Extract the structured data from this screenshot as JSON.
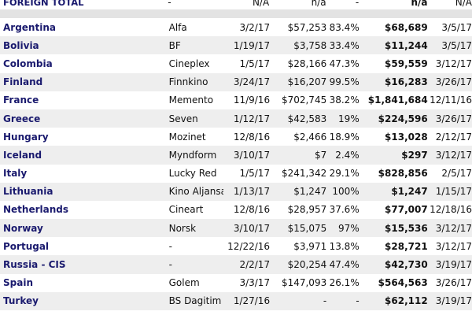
{
  "foreign_total": {
    "label": "FOREIGN TOTAL",
    "distributor": "-",
    "release_date": "N/A",
    "opening_gross": "n/a",
    "percent": "-",
    "total_gross": "n/a",
    "as_of": "N/A"
  },
  "rows": [
    {
      "country": "Argentina",
      "distributor": "Alfa",
      "release_date": "3/2/17",
      "opening_gross": "$57,253",
      "percent": "83.4%",
      "total_gross": "$68,689",
      "as_of": "3/5/17"
    },
    {
      "country": "Bolivia",
      "distributor": "BF",
      "release_date": "1/19/17",
      "opening_gross": "$3,758",
      "percent": "33.4%",
      "total_gross": "$11,244",
      "as_of": "3/5/17"
    },
    {
      "country": "Colombia",
      "distributor": "Cineplex",
      "release_date": "1/5/17",
      "opening_gross": "$28,166",
      "percent": "47.3%",
      "total_gross": "$59,559",
      "as_of": "3/12/17"
    },
    {
      "country": "Finland",
      "distributor": "Finnkino",
      "release_date": "3/24/17",
      "opening_gross": "$16,207",
      "percent": "99.5%",
      "total_gross": "$16,283",
      "as_of": "3/26/17"
    },
    {
      "country": "France",
      "distributor": "Memento",
      "release_date": "11/9/16",
      "opening_gross": "$702,745",
      "percent": "38.2%",
      "total_gross": "$1,841,684",
      "as_of": "12/11/16"
    },
    {
      "country": "Greece",
      "distributor": "Seven",
      "release_date": "1/12/17",
      "opening_gross": "$42,583",
      "percent": "19%",
      "total_gross": "$224,596",
      "as_of": "3/26/17"
    },
    {
      "country": "Hungary",
      "distributor": "Mozinet",
      "release_date": "12/8/16",
      "opening_gross": "$2,466",
      "percent": "18.9%",
      "total_gross": "$13,028",
      "as_of": "2/12/17"
    },
    {
      "country": "Iceland",
      "distributor": "Myndform",
      "release_date": "3/10/17",
      "opening_gross": "$7",
      "percent": "2.4%",
      "total_gross": "$297",
      "as_of": "3/12/17"
    },
    {
      "country": "Italy",
      "distributor": "Lucky Red",
      "release_date": "1/5/17",
      "opening_gross": "$241,342",
      "percent": "29.1%",
      "total_gross": "$828,856",
      "as_of": "2/5/17"
    },
    {
      "country": "Lithuania",
      "distributor": "Kino Aljansas",
      "release_date": "1/13/17",
      "opening_gross": "$1,247",
      "percent": "100%",
      "total_gross": "$1,247",
      "as_of": "1/15/17"
    },
    {
      "country": "Netherlands",
      "distributor": "Cineart",
      "release_date": "12/8/16",
      "opening_gross": "$28,957",
      "percent": "37.6%",
      "total_gross": "$77,007",
      "as_of": "12/18/16"
    },
    {
      "country": "Norway",
      "distributor": "Norsk",
      "release_date": "3/10/17",
      "opening_gross": "$15,075",
      "percent": "97%",
      "total_gross": "$15,536",
      "as_of": "3/12/17"
    },
    {
      "country": "Portugal",
      "distributor": "-",
      "release_date": "12/22/16",
      "opening_gross": "$3,971",
      "percent": "13.8%",
      "total_gross": "$28,721",
      "as_of": "3/12/17"
    },
    {
      "country": "Russia - CIS",
      "distributor": "-",
      "release_date": "2/2/17",
      "opening_gross": "$20,254",
      "percent": "47.4%",
      "total_gross": "$42,730",
      "as_of": "3/19/17"
    },
    {
      "country": "Spain",
      "distributor": "Golem",
      "release_date": "3/3/17",
      "opening_gross": "$147,093",
      "percent": "26.1%",
      "total_gross": "$564,563",
      "as_of": "3/26/17"
    },
    {
      "country": "Turkey",
      "distributor": "BS Dagitim",
      "release_date": "1/27/16",
      "opening_gross": "-",
      "percent": "-",
      "total_gross": "$62,112",
      "as_of": "3/19/17"
    }
  ]
}
